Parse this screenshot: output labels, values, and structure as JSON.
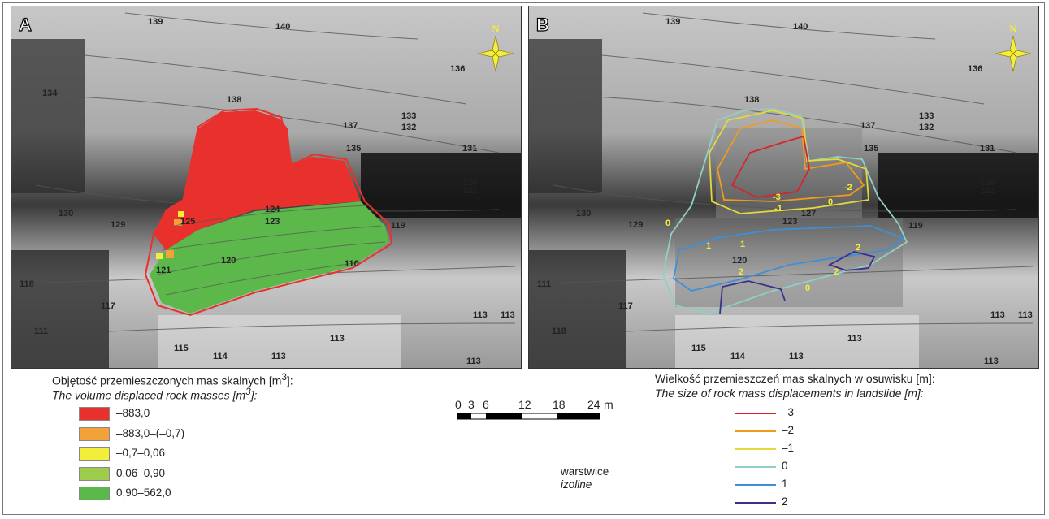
{
  "panels": [
    {
      "letter": "A",
      "north": "N",
      "contours": [
        "139",
        "140",
        "136",
        "134",
        "138",
        "137",
        "133",
        "132",
        "135",
        "131",
        "126",
        "122",
        "130",
        "129",
        "125",
        "124",
        "123",
        "119",
        "121",
        "120",
        "110",
        "117",
        "118",
        "111",
        "113",
        "113",
        "113",
        "115",
        "114",
        "113",
        "113"
      ]
    },
    {
      "letter": "B",
      "north": "N",
      "contours": [
        "139",
        "140",
        "136",
        "138",
        "137",
        "133",
        "132",
        "135",
        "131",
        "126",
        "122",
        "130",
        "129",
        "123",
        "127",
        "119",
        "120",
        "117",
        "118",
        "111",
        "113",
        "113",
        "113",
        "115",
        "114",
        "113",
        "113"
      ],
      "displacement_labels": [
        "-3",
        "-2",
        "-1",
        "0",
        "0",
        "1",
        "1",
        "2",
        "2",
        "2",
        "0"
      ]
    }
  ],
  "legend_volume": {
    "title_pl": "Objętość przemieszczonych mas skalnych [m",
    "title_pl_sup": "3",
    "title_pl_end": "]:",
    "title_en": "The volume displaced rock masses [m",
    "title_en_sup": "3",
    "title_en_end": "]:",
    "items": [
      {
        "label": "–883,0",
        "color": "#e8312c"
      },
      {
        "label": "–883,0–(–0,7)",
        "color": "#f4a13a"
      },
      {
        "label": "–0,7–0,06",
        "color": "#f3ee3a"
      },
      {
        "label": "0,06–0,90",
        "color": "#9dcc4c"
      },
      {
        "label": "0,90–562,0",
        "color": "#5cb84a"
      }
    ]
  },
  "legend_displacement": {
    "title_pl": "Wielkość przemieszczeń mas skalnych w osuwisku [m]:",
    "title_en": "The size of rock mass displacements in landslide [m]:",
    "items": [
      {
        "label": "–3",
        "color": "#d9232a"
      },
      {
        "label": "–2",
        "color": "#f29a1f"
      },
      {
        "label": "–1",
        "color": "#e3d93a"
      },
      {
        "label": "0",
        "color": "#8fd0c6"
      },
      {
        "label": "1",
        "color": "#3f8fd8"
      },
      {
        "label": "2",
        "color": "#3a2f8c"
      }
    ]
  },
  "scale_bar": {
    "ticks": [
      "0",
      "3",
      "6",
      "12",
      "18",
      "24"
    ],
    "unit": "m"
  },
  "isoline_legend": {
    "label_pl": "warstwice",
    "label_en": "izoline"
  }
}
